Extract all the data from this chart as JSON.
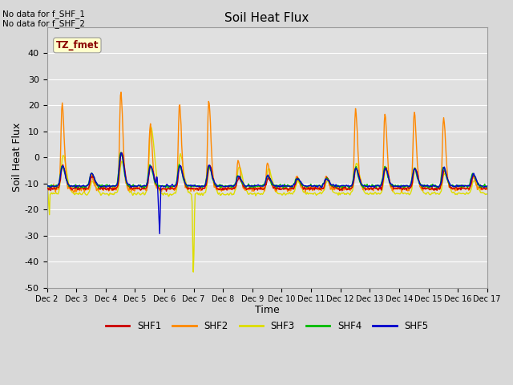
{
  "title": "Soil Heat Flux",
  "ylabel": "Soil Heat Flux",
  "xlabel": "Time",
  "ylim": [
    -50,
    50
  ],
  "note1": "No data for f_SHF_1",
  "note2": "No data for f_SHF_2",
  "tz_label": "TZ_fmet",
  "series_colors": {
    "SHF1": "#cc0000",
    "SHF2": "#ff8800",
    "SHF3": "#dddd00",
    "SHF4": "#00bb00",
    "SHF5": "#0000cc"
  },
  "legend_labels": [
    "SHF1",
    "SHF2",
    "SHF3",
    "SHF4",
    "SHF5"
  ],
  "xtick_labels": [
    "Dec 2",
    "Dec 3",
    "Dec 4",
    "Dec 5",
    "Dec 6",
    "Dec 7",
    "Dec 8",
    "Dec 9",
    "Dec 10",
    "Dec 11",
    "Dec 12",
    "Dec 13",
    "Dec 14",
    "Dec 15",
    "Dec 16",
    "Dec 17"
  ],
  "ytick_values": [
    -50,
    -40,
    -30,
    -20,
    -10,
    0,
    10,
    20,
    30,
    40
  ],
  "fig_bg_color": "#d8d8d8",
  "plot_bg_color": "#e0e0e0",
  "grid_color": "#ffffff",
  "linewidth": 1.0
}
